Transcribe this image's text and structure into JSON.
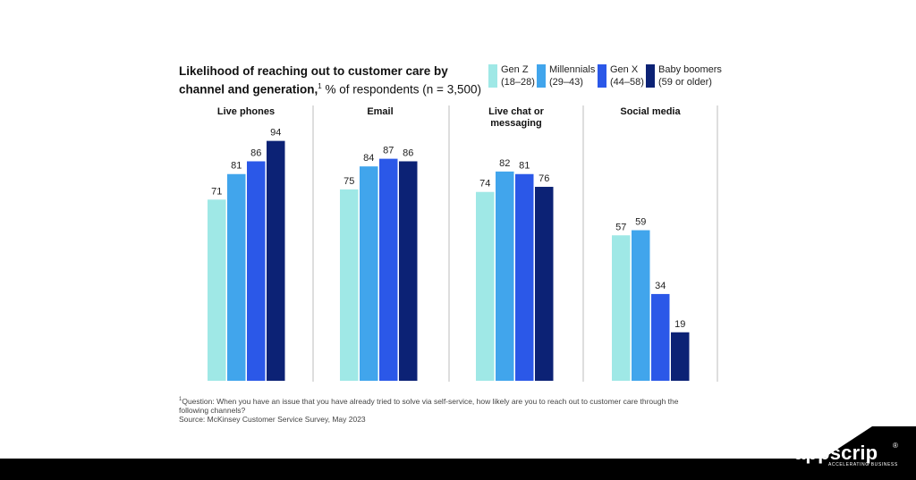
{
  "chart_data": {
    "type": "bar",
    "title_bold": "Likelihood of reaching out to customer care by channel and generation,",
    "title_sup": "1",
    "title_rest": " % of respondents (n = 3,500)",
    "categories": [
      "Live phones",
      "Email",
      "Live chat or messaging",
      "Social media"
    ],
    "panel_title_lines": [
      [
        "Live phones"
      ],
      [
        "Email"
      ],
      [
        "Live chat or",
        "messaging"
      ],
      [
        "Social media"
      ]
    ],
    "series": [
      {
        "name": "Gen Z",
        "range": "(18–28)",
        "color": "#9fe8e6",
        "values": [
          71,
          75,
          74,
          57
        ]
      },
      {
        "name": "Millennials",
        "range": "(29–43)",
        "color": "#41a5ec",
        "values": [
          81,
          84,
          82,
          59
        ]
      },
      {
        "name": "Gen X",
        "range": "(44–58)",
        "color": "#2b58e8",
        "values": [
          86,
          87,
          81,
          34
        ]
      },
      {
        "name": "Baby boomers",
        "range": "(59 or older)",
        "color": "#0c2275",
        "values": [
          94,
          86,
          76,
          19
        ]
      }
    ],
    "ylim": [
      0,
      100
    ],
    "xlabel": "",
    "ylabel": "",
    "grid": false,
    "legend_position": "top-right"
  },
  "footnote": {
    "sup": "1",
    "question": "Question: When you have an issue that you have already tried to solve via self-service, how likely are you to reach out to customer care through the following channels?",
    "source": "Source: McKinsey Customer Service Survey, May 2023"
  },
  "brand": {
    "name": "appscrip",
    "reg": "®",
    "tagline": "ACCELERATING BUSINESS"
  },
  "colors": {
    "footer_bg": "#000000",
    "divider": "#bdbdbd"
  }
}
